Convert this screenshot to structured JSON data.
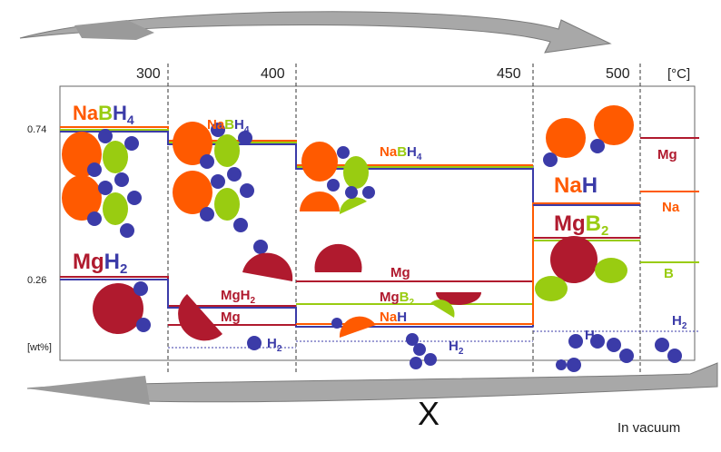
{
  "axis": {
    "temps": [
      "300",
      "400",
      "450",
      "500"
    ],
    "unit": "[°C]",
    "y_ticks": [
      "0.74",
      "0.26"
    ],
    "y_unit": "[wt%]"
  },
  "colors": {
    "orange": "#ff5a00",
    "blue": "#3b3ba8",
    "green": "#99cc11",
    "crimson": "#b01a2e",
    "arrow_grey": "#a9a9a9"
  },
  "stage1": {
    "nabh4": {
      "na": "Na",
      "b": "B",
      "h": "H",
      "sub": "4"
    },
    "mgh2": {
      "mg": "Mg",
      "h": "H",
      "sub": "2"
    }
  },
  "stage2": {
    "nabh4": {
      "na": "Na",
      "b": "B",
      "h": "H",
      "sub": "4"
    },
    "mgh2": {
      "text": "MgH",
      "sub": "2"
    },
    "mg": "Mg",
    "h2": {
      "text": "H",
      "sub": "2"
    }
  },
  "stage3": {
    "nabh4": {
      "na": "Na",
      "b": "B",
      "h": "H",
      "sub": "4"
    },
    "mg": "Mg",
    "mgb2": {
      "mg": "Mg",
      "b": "B",
      "sub": "2"
    },
    "nah": {
      "na": "Na",
      "h": "H"
    },
    "h2": {
      "text": "H",
      "sub": "2"
    }
  },
  "stage4": {
    "nah": {
      "na": "Na",
      "h": "H"
    },
    "mgb2": {
      "mg": "Mg",
      "b": "B",
      "sub": "2"
    },
    "h2": {
      "text": "H",
      "sub": "2"
    }
  },
  "stage5": {
    "mg": "Mg",
    "na": "Na",
    "b": "B",
    "h2": {
      "text": "H",
      "sub": "2"
    }
  },
  "cross": "X",
  "note": "In vacuum"
}
